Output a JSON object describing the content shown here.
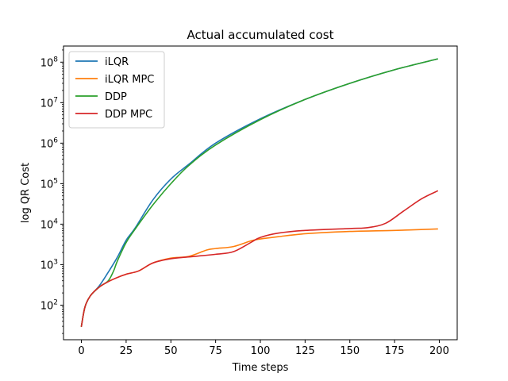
{
  "chart_data": {
    "type": "line",
    "title": "Actual accumulated cost",
    "xlabel": "Time steps",
    "ylabel": "log QR Cost",
    "xlim": [
      -10,
      210
    ],
    "ylim": [
      14,
      250000000
    ],
    "yscale": "log",
    "grid": false,
    "legend_position": "top-left",
    "x_ticks": [
      0,
      25,
      50,
      75,
      100,
      125,
      150,
      175,
      200
    ],
    "y_ticks": [
      {
        "value": 100,
        "base": "10",
        "exp": "2"
      },
      {
        "value": 1000,
        "base": "10",
        "exp": "3"
      },
      {
        "value": 10000,
        "base": "10",
        "exp": "4"
      },
      {
        "value": 100000,
        "base": "10",
        "exp": "5"
      },
      {
        "value": 1000000,
        "base": "10",
        "exp": "6"
      },
      {
        "value": 10000000,
        "base": "10",
        "exp": "7"
      },
      {
        "value": 100000000,
        "base": "10",
        "exp": "8"
      }
    ],
    "series": [
      {
        "name": "iLQR",
        "color": "#1f77b4",
        "x": [
          0,
          2,
          5,
          10,
          15,
          20,
          25,
          30,
          40,
          50,
          60,
          75,
          100,
          125,
          150,
          175,
          199
        ],
        "values": [
          30,
          90,
          170,
          300,
          650,
          1500,
          4000,
          8000,
          40000,
          130000,
          300000,
          1000000,
          4000000,
          12000000,
          30000000,
          65000000,
          120000000
        ]
      },
      {
        "name": "iLQR MPC",
        "color": "#ff7f0e",
        "x": [
          0,
          2,
          5,
          10,
          15,
          20,
          25,
          32,
          40,
          50,
          60,
          70,
          75,
          85,
          95,
          100,
          110,
          125,
          150,
          175,
          199
        ],
        "values": [
          30,
          90,
          170,
          280,
          380,
          480,
          580,
          700,
          1100,
          1450,
          1600,
          2300,
          2500,
          2800,
          3900,
          4300,
          4900,
          5800,
          6600,
          7000,
          7600
        ]
      },
      {
        "name": "DDP",
        "color": "#2ca02c",
        "x": [
          0,
          2,
          5,
          10,
          15,
          18,
          20,
          25,
          30,
          40,
          50,
          60,
          75,
          100,
          125,
          150,
          175,
          199
        ],
        "values": [
          30,
          90,
          170,
          280,
          400,
          700,
          1200,
          3500,
          7500,
          30000,
          100000,
          280000,
          900000,
          3800000,
          12000000,
          30000000,
          65000000,
          120000000
        ]
      },
      {
        "name": "DDP MPC",
        "color": "#d62728",
        "x": [
          0,
          2,
          5,
          10,
          15,
          20,
          25,
          32,
          40,
          50,
          60,
          75,
          85,
          95,
          100,
          110,
          125,
          150,
          160,
          170,
          180,
          190,
          199
        ],
        "values": [
          30,
          90,
          170,
          280,
          380,
          480,
          580,
          700,
          1100,
          1400,
          1550,
          1800,
          2100,
          3600,
          4700,
          6000,
          7000,
          7800,
          8200,
          10500,
          21000,
          42000,
          66000
        ]
      }
    ]
  }
}
